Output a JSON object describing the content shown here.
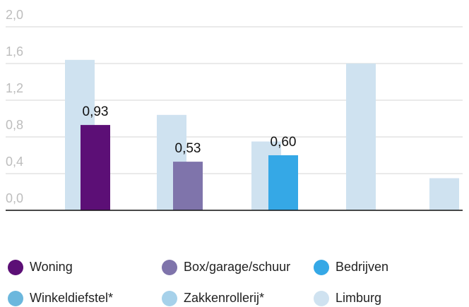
{
  "chart_data": {
    "type": "bar",
    "categories": [
      null,
      null,
      null,
      null,
      null
    ],
    "series": [
      {
        "name": "Woning",
        "color": "#5c0f76",
        "values": [
          0.93,
          null,
          null,
          null,
          null
        ],
        "value_labels": [
          "0,93",
          null,
          null,
          null,
          null
        ]
      },
      {
        "name": "Box/garage/schuur",
        "color": "#7f74ab",
        "values": [
          null,
          0.53,
          null,
          null,
          null
        ],
        "value_labels": [
          null,
          "0,53",
          null,
          null,
          null
        ]
      },
      {
        "name": "Bedrijven",
        "color": "#35a8e6",
        "values": [
          null,
          null,
          0.6,
          null,
          null
        ],
        "value_labels": [
          null,
          null,
          "0,60",
          null,
          null
        ]
      },
      {
        "name": "Winkeldiefstel*",
        "color": "#6bb7dd",
        "values": [
          null,
          null,
          null,
          null,
          null
        ]
      },
      {
        "name": "Zakkenrollerij*",
        "color": "#a6d1ea",
        "values": [
          null,
          null,
          null,
          null,
          null
        ]
      },
      {
        "name": "Limburg",
        "color": "#cfe2f0",
        "values": [
          1.64,
          1.04,
          0.75,
          1.6,
          0.35
        ]
      }
    ],
    "ylim": [
      0,
      2.0
    ],
    "yticks": [
      {
        "value": 0,
        "label": "0,0"
      },
      {
        "value": 0.4,
        "label": "0,4"
      },
      {
        "value": 0.8,
        "label": "0,8"
      },
      {
        "value": 1.2,
        "label": "1,2"
      },
      {
        "value": 1.6,
        "label": "1,6"
      },
      {
        "value": 2.0,
        "label": "2,0"
      }
    ],
    "grid": true
  }
}
